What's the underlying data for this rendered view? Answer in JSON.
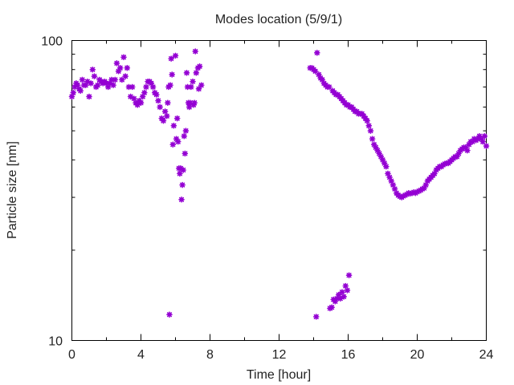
{
  "chart_data": {
    "type": "scatter",
    "title": "Modes location (5/9/1)",
    "xlabel": "Time [hour]",
    "ylabel": "Particle size [nm]",
    "xlim": [
      0,
      24
    ],
    "ylim": [
      10,
      100
    ],
    "yscale": "log",
    "grid": false,
    "legend": "none",
    "marker_color": "#9400d3",
    "x_ticks": [
      0,
      4,
      8,
      12,
      16,
      20,
      24
    ],
    "x_tick_labels": [
      "0",
      "4",
      "8",
      "12",
      "16",
      "20",
      "24"
    ],
    "y_tick_labels": [
      "100",
      "10"
    ],
    "series": [
      {
        "points": [
          [
            0.0,
            65
          ],
          [
            0.08,
            67
          ],
          [
            0.17,
            70
          ],
          [
            0.25,
            72
          ],
          [
            0.33,
            71
          ],
          [
            0.42,
            69
          ],
          [
            0.5,
            68
          ],
          [
            0.6,
            74
          ],
          [
            0.7,
            71
          ],
          [
            0.8,
            71
          ],
          [
            0.9,
            73
          ],
          [
            1.0,
            65
          ],
          [
            1.1,
            72
          ],
          [
            1.2,
            80
          ],
          [
            1.3,
            76
          ],
          [
            1.4,
            70
          ],
          [
            1.5,
            71
          ],
          [
            1.6,
            74
          ],
          [
            1.7,
            73
          ],
          [
            1.8,
            72
          ],
          [
            1.9,
            73
          ],
          [
            2.0,
            72
          ],
          [
            2.1,
            70
          ],
          [
            2.2,
            72
          ],
          [
            2.3,
            74
          ],
          [
            2.4,
            71
          ],
          [
            2.5,
            74
          ],
          [
            2.6,
            84
          ],
          [
            2.7,
            79
          ],
          [
            2.8,
            81
          ],
          [
            2.9,
            74
          ],
          [
            3.0,
            88
          ],
          [
            3.1,
            76
          ],
          [
            3.2,
            81
          ],
          [
            3.3,
            70
          ],
          [
            3.4,
            65
          ],
          [
            3.5,
            70
          ],
          [
            3.6,
            64
          ],
          [
            3.7,
            62
          ],
          [
            3.8,
            61
          ],
          [
            3.9,
            63
          ],
          [
            4.0,
            62
          ],
          [
            4.1,
            65
          ],
          [
            4.2,
            67
          ],
          [
            4.3,
            70
          ],
          [
            4.4,
            73
          ],
          [
            4.5,
            73
          ],
          [
            4.6,
            72
          ],
          [
            4.7,
            70
          ],
          [
            4.8,
            67
          ],
          [
            4.9,
            66
          ],
          [
            5.0,
            63
          ],
          [
            5.1,
            60
          ],
          [
            5.2,
            55
          ],
          [
            5.3,
            54
          ],
          [
            5.4,
            58
          ],
          [
            5.5,
            56
          ],
          [
            5.55,
            62
          ],
          [
            5.6,
            70
          ],
          [
            5.65,
            12.2
          ],
          [
            5.7,
            71
          ],
          [
            5.75,
            87
          ],
          [
            5.8,
            77
          ],
          [
            5.85,
            45
          ],
          [
            5.9,
            52
          ],
          [
            6.0,
            89
          ],
          [
            6.05,
            47
          ],
          [
            6.1,
            55
          ],
          [
            6.15,
            46
          ],
          [
            6.2,
            37.5
          ],
          [
            6.25,
            36
          ],
          [
            6.3,
            37.5
          ],
          [
            6.35,
            29.5
          ],
          [
            6.4,
            33
          ],
          [
            6.45,
            37
          ],
          [
            6.5,
            48
          ],
          [
            6.55,
            42
          ],
          [
            6.6,
            50
          ],
          [
            6.65,
            78
          ],
          [
            6.7,
            70
          ],
          [
            6.75,
            62
          ],
          [
            6.8,
            60
          ],
          [
            6.85,
            62
          ],
          [
            6.9,
            70
          ],
          [
            7.0,
            73
          ],
          [
            7.05,
            61
          ],
          [
            7.1,
            62
          ],
          [
            7.15,
            92
          ],
          [
            7.2,
            78
          ],
          [
            7.3,
            81
          ],
          [
            7.35,
            69
          ],
          [
            7.4,
            82
          ],
          [
            7.5,
            71
          ],
          [
            13.8,
            81
          ],
          [
            13.9,
            81
          ],
          [
            14.0,
            80
          ],
          [
            14.1,
            79
          ],
          [
            14.15,
            12
          ],
          [
            14.2,
            91
          ],
          [
            14.3,
            77
          ],
          [
            14.4,
            75
          ],
          [
            14.5,
            74
          ],
          [
            14.6,
            72
          ],
          [
            14.7,
            71
          ],
          [
            14.8,
            70
          ],
          [
            14.9,
            70
          ],
          [
            14.95,
            12.8
          ],
          [
            15.05,
            12.9
          ],
          [
            15.1,
            68
          ],
          [
            15.15,
            13.7
          ],
          [
            15.2,
            67
          ],
          [
            15.25,
            13.5
          ],
          [
            15.3,
            66
          ],
          [
            15.35,
            13.8
          ],
          [
            15.4,
            66
          ],
          [
            15.45,
            14.2
          ],
          [
            15.5,
            65
          ],
          [
            15.55,
            13.8
          ],
          [
            15.6,
            64
          ],
          [
            15.65,
            14.5
          ],
          [
            15.7,
            63
          ],
          [
            15.75,
            14
          ],
          [
            15.8,
            62
          ],
          [
            15.85,
            15.2
          ],
          [
            15.9,
            61
          ],
          [
            15.95,
            14.7
          ],
          [
            16.0,
            61
          ],
          [
            16.05,
            16.5
          ],
          [
            16.1,
            60
          ],
          [
            16.2,
            60
          ],
          [
            16.3,
            59
          ],
          [
            16.4,
            58
          ],
          [
            16.5,
            58
          ],
          [
            16.6,
            57
          ],
          [
            16.7,
            57
          ],
          [
            16.8,
            57
          ],
          [
            16.9,
            56
          ],
          [
            17.0,
            55
          ],
          [
            17.1,
            54
          ],
          [
            17.2,
            52
          ],
          [
            17.3,
            50
          ],
          [
            17.4,
            47
          ],
          [
            17.5,
            45
          ],
          [
            17.6,
            44
          ],
          [
            17.7,
            43
          ],
          [
            17.8,
            42
          ],
          [
            17.9,
            41
          ],
          [
            18.0,
            40
          ],
          [
            18.1,
            39
          ],
          [
            18.2,
            38
          ],
          [
            18.3,
            36
          ],
          [
            18.4,
            35
          ],
          [
            18.5,
            34
          ],
          [
            18.6,
            33
          ],
          [
            18.7,
            32
          ],
          [
            18.8,
            31
          ],
          [
            18.9,
            30.5
          ],
          [
            19.0,
            30.2
          ],
          [
            19.1,
            30.0
          ],
          [
            19.2,
            30.3
          ],
          [
            19.3,
            30.5
          ],
          [
            19.4,
            30.7
          ],
          [
            19.5,
            31
          ],
          [
            19.6,
            30.9
          ],
          [
            19.7,
            31
          ],
          [
            19.8,
            31.2
          ],
          [
            19.9,
            31
          ],
          [
            20.0,
            31.3
          ],
          [
            20.1,
            31.5
          ],
          [
            20.2,
            31.7
          ],
          [
            20.3,
            32
          ],
          [
            20.4,
            32.2
          ],
          [
            20.5,
            33
          ],
          [
            20.6,
            34
          ],
          [
            20.7,
            34.5
          ],
          [
            20.8,
            35
          ],
          [
            20.9,
            35.5
          ],
          [
            21.0,
            36
          ],
          [
            21.1,
            37
          ],
          [
            21.2,
            37.5
          ],
          [
            21.3,
            38
          ],
          [
            21.4,
            38
          ],
          [
            21.5,
            38.5
          ],
          [
            21.6,
            38.8
          ],
          [
            21.7,
            39
          ],
          [
            21.8,
            39
          ],
          [
            21.9,
            39.5
          ],
          [
            22.0,
            40
          ],
          [
            22.1,
            40.5
          ],
          [
            22.2,
            41
          ],
          [
            22.3,
            41
          ],
          [
            22.4,
            42
          ],
          [
            22.5,
            43
          ],
          [
            22.6,
            43.5
          ],
          [
            22.7,
            44
          ],
          [
            22.8,
            44
          ],
          [
            22.9,
            43
          ],
          [
            23.0,
            45
          ],
          [
            23.1,
            46
          ],
          [
            23.2,
            46
          ],
          [
            23.3,
            47
          ],
          [
            23.4,
            46.5
          ],
          [
            23.5,
            47
          ],
          [
            23.6,
            48
          ],
          [
            23.7,
            47
          ],
          [
            23.8,
            46
          ],
          [
            23.9,
            48
          ],
          [
            24.0,
            44.5
          ]
        ]
      }
    ]
  }
}
